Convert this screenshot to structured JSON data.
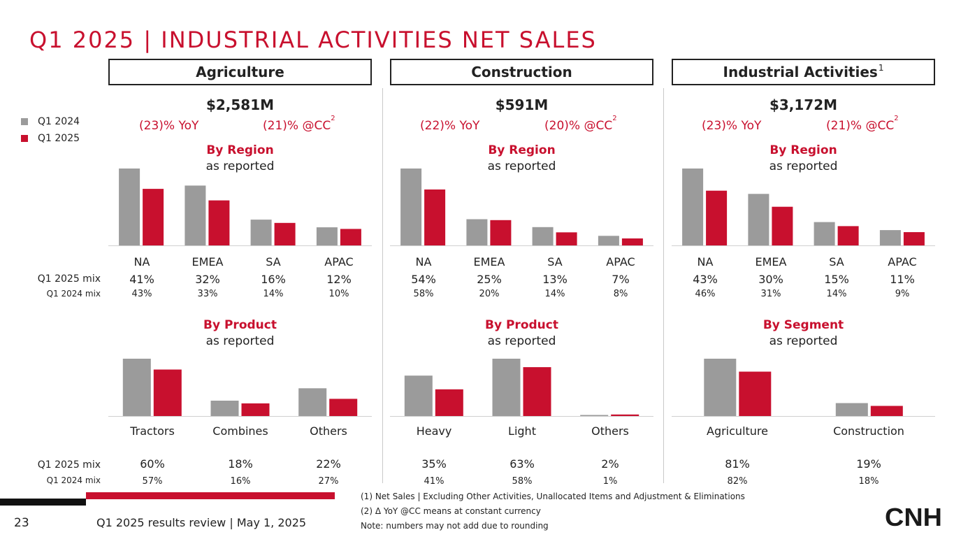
{
  "title": "Q1 2025 | INDUSTRIAL ACTIVITIES NET SALES",
  "legend": [
    {
      "label": "Q1 2024",
      "color": "#9b9b9b"
    },
    {
      "label": "Q1 2025",
      "color": "#c8102e"
    }
  ],
  "row_labels": {
    "mix25": "Q1 2025 mix",
    "mix24": "Q1 2024 mix"
  },
  "columns": [
    {
      "header": "Agriculture",
      "header_sup": "",
      "total": "$2,581M",
      "yoy": "(23)% YoY",
      "cc": "(21)% @CC",
      "cc_sup": "2",
      "region_title": "By Region",
      "region_sub": "as reported",
      "region_chart": {
        "type": "bar",
        "categories": [
          "NA",
          "EMEA",
          "SA",
          "APAC"
        ],
        "series": [
          {
            "name": "Q1 2024",
            "values": [
              1400,
              1090,
              470,
              330
            ]
          },
          {
            "name": "Q1 2025",
            "values": [
              1030,
              820,
              410,
              300
            ]
          }
        ]
      },
      "region_mix25": [
        "41%",
        "32%",
        "16%",
        "12%"
      ],
      "region_mix24": [
        "43%",
        "33%",
        "14%",
        "10%"
      ],
      "product_title": "By Product",
      "product_sub": "as reported",
      "product_chart": {
        "type": "bar",
        "categories": [
          "Tractors",
          "Combines",
          "Others"
        ],
        "series": [
          {
            "name": "Q1 2024",
            "values": [
              1900,
              510,
              920
            ]
          },
          {
            "name": "Q1 2025",
            "values": [
              1540,
              420,
              570
            ]
          }
        ]
      },
      "product_mix25": [
        "60%",
        "18%",
        "22%"
      ],
      "product_mix24": [
        "57%",
        "16%",
        "27%"
      ]
    },
    {
      "header": "Construction",
      "header_sup": "",
      "total": "$591M",
      "yoy": "(22)% YoY",
      "cc": "(20)% @CC",
      "cc_sup": "2",
      "region_title": "By Region",
      "region_sub": "as reported",
      "region_chart": {
        "type": "bar",
        "categories": [
          "NA",
          "EMEA",
          "SA",
          "APAC"
        ],
        "series": [
          {
            "name": "Q1 2024",
            "values": [
              440,
              150,
              105,
              55
            ]
          },
          {
            "name": "Q1 2025",
            "values": [
              320,
              145,
              75,
              40
            ]
          }
        ]
      },
      "region_mix25": [
        "54%",
        "25%",
        "13%",
        "7%"
      ],
      "region_mix24": [
        "58%",
        "20%",
        "14%",
        "8%"
      ],
      "product_title": "By Product",
      "product_sub": "as reported",
      "product_chart": {
        "type": "bar",
        "categories": [
          "Heavy",
          "Light",
          "Others"
        ],
        "series": [
          {
            "name": "Q1 2024",
            "values": [
              310,
              440,
              8
            ]
          },
          {
            "name": "Q1 2025",
            "values": [
              205,
              375,
              12
            ]
          }
        ]
      },
      "product_mix25": [
        "35%",
        "63%",
        "2%"
      ],
      "product_mix24": [
        "41%",
        "58%",
        "1%"
      ]
    },
    {
      "header": "Industrial Activities",
      "header_sup": "1",
      "total": "$3,172M",
      "yoy": "(23)% YoY",
      "cc": "(21)% @CC",
      "cc_sup": "2",
      "region_title": "By Region",
      "region_sub": "as reported",
      "region_chart": {
        "type": "bar",
        "categories": [
          "NA",
          "EMEA",
          "SA",
          "APAC"
        ],
        "series": [
          {
            "name": "Q1 2024",
            "values": [
              1910,
              1280,
              580,
              380
            ]
          },
          {
            "name": "Q1 2025",
            "values": [
              1360,
              960,
              480,
              330
            ]
          }
        ]
      },
      "region_mix25": [
        "43%",
        "30%",
        "15%",
        "11%"
      ],
      "region_mix24": [
        "46%",
        "31%",
        "14%",
        "9%"
      ],
      "product_title": "By Segment",
      "product_sub": "as reported",
      "product_chart": {
        "type": "bar",
        "categories": [
          "Agriculture",
          "Construction"
        ],
        "series": [
          {
            "name": "Q1 2024",
            "values": [
              3330,
              750
            ]
          },
          {
            "name": "Q1 2025",
            "values": [
              2580,
              590
            ]
          }
        ]
      },
      "product_mix25": [
        "81%",
        "19%"
      ],
      "product_mix24": [
        "82%",
        "18%"
      ]
    }
  ],
  "footnotes": [
    "(1) Net Sales | Excluding Other Activities, Unallocated Items and Adjustment & Eliminations",
    "(2) Δ YoY @CC means at constant currency",
    "Note: numbers may not add due to rounding"
  ],
  "footer": {
    "page": "23",
    "text": "Q1 2025 results review | May 1, 2025"
  },
  "logo": "CNH"
}
